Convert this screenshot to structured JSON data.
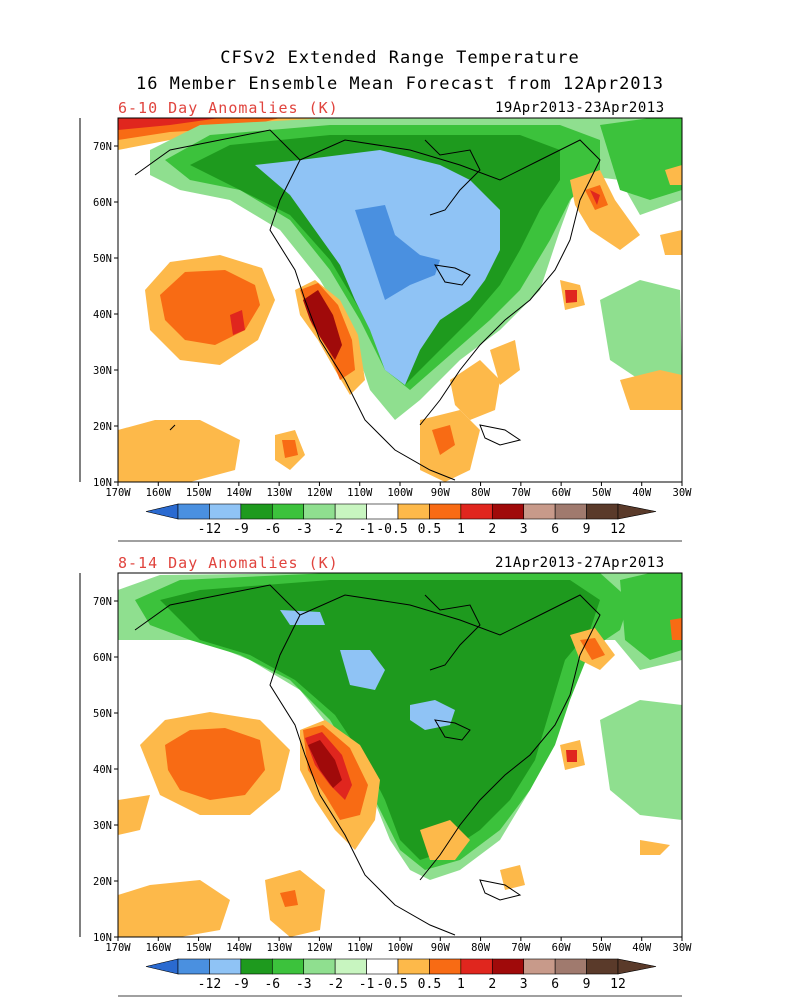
{
  "header": {
    "title_line1": "CFSv2 Extended Range Temperature",
    "title_line2": "16 Member Ensemble Mean Forecast from 12Apr2013"
  },
  "panels": [
    {
      "title": "6-10 Day Anomalies (K)",
      "date_range": "19Apr2013-23Apr2013",
      "lat_labels": [
        "70N",
        "60N",
        "50N",
        "40N",
        "30N",
        "20N",
        "10N"
      ],
      "lon_labels": [
        "170W",
        "160W",
        "150W",
        "140W",
        "130W",
        "120W",
        "110W",
        "100W",
        "90W",
        "80W",
        "70W",
        "60W",
        "50W",
        "40W",
        "30W"
      ]
    },
    {
      "title": "8-14 Day Anomalies (K)",
      "date_range": "21Apr2013-27Apr2013",
      "lat_labels": [
        "70N",
        "60N",
        "50N",
        "40N",
        "30N",
        "20N",
        "10N"
      ],
      "lon_labels": [
        "170W",
        "160W",
        "150W",
        "140W",
        "130W",
        "120W",
        "110W",
        "100W",
        "90W",
        "80W",
        "70W",
        "60W",
        "50W",
        "40W",
        "30W"
      ]
    }
  ],
  "colorbar": {
    "labels": [
      "-12",
      "-9",
      "-6",
      "-3",
      "-2",
      "-1",
      "-0.5",
      "0.5",
      "1",
      "2",
      "3",
      "6",
      "9",
      "12"
    ],
    "colors": [
      "#4a90e0",
      "#8fc3f5",
      "#1e9a1e",
      "#3cc23c",
      "#8fdf8f",
      "#c8f5c0",
      "#ffffff",
      "#fdb94a",
      "#f86b14",
      "#e0261e",
      "#a00a0a",
      "#c89a8a",
      "#a07a6e",
      "#5a3a2a"
    ],
    "left_arrow_color": "#2a6ad0",
    "right_arrow_color": "#5a3a2a"
  },
  "map_colors": {
    "blue_dark": "#4a90e0",
    "blue_light": "#8fc3f5",
    "green_dark": "#1e9a1e",
    "green_mid": "#3cc23c",
    "green_light": "#8fdf8f",
    "orange_light": "#fdb94a",
    "orange": "#f86b14",
    "red": "#e0261e",
    "dark_red": "#a00a0a"
  }
}
